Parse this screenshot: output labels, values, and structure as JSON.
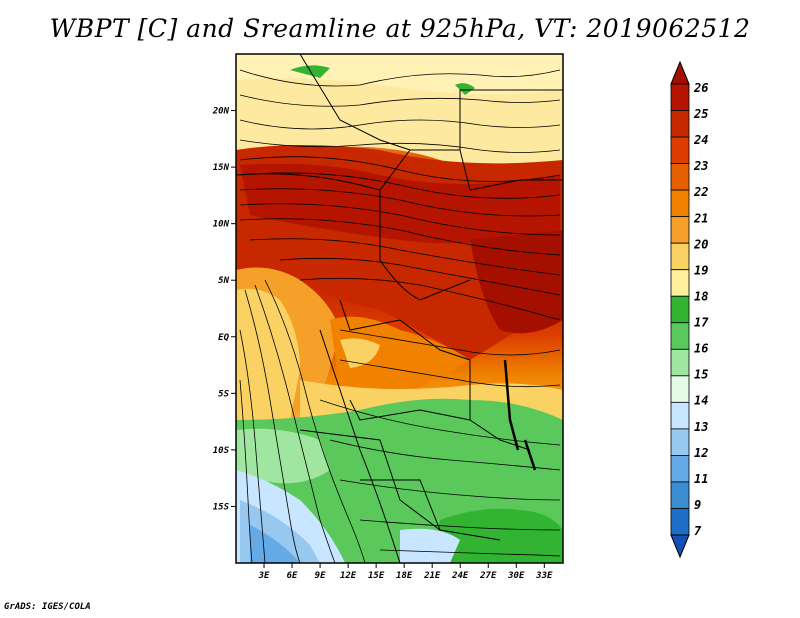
{
  "title": "WBPT [C] and Sreamline at 925hPa, VT: 2019062512",
  "credit": "GrADS: IGES/COLA",
  "map": {
    "lon_range": [
      0,
      35
    ],
    "lat_range": [
      -20,
      25
    ],
    "lon_ticks": [
      "3E",
      "6E",
      "9E",
      "12E",
      "15E",
      "18E",
      "21E",
      "24E",
      "27E",
      "30E",
      "33E"
    ],
    "lon_tick_values": [
      3,
      6,
      9,
      12,
      15,
      18,
      21,
      24,
      27,
      30,
      33
    ],
    "lat_ticks": [
      "20N",
      "15N",
      "10N",
      "5N",
      "EQ",
      "5S",
      "10S",
      "15S"
    ],
    "lat_tick_values": [
      20,
      15,
      10,
      5,
      0,
      -5,
      -10,
      -15
    ]
  },
  "colorbar": {
    "labels": [
      "26",
      "25",
      "24",
      "23",
      "22",
      "21",
      "20",
      "19",
      "18",
      "17",
      "16",
      "15",
      "14",
      "13",
      "12",
      "11",
      "9",
      "7"
    ],
    "colors": [
      "#a50f00",
      "#b41400",
      "#c82800",
      "#dc3c00",
      "#e65f00",
      "#f08200",
      "#f5a028",
      "#fad264",
      "#fff0a0",
      "#32b432",
      "#5ac85a",
      "#a0e6a0",
      "#e6fae6",
      "#c8e6ff",
      "#96c8f0",
      "#64aae6",
      "#3c8cd2",
      "#1e6ec8",
      "#1450b4"
    ]
  }
}
